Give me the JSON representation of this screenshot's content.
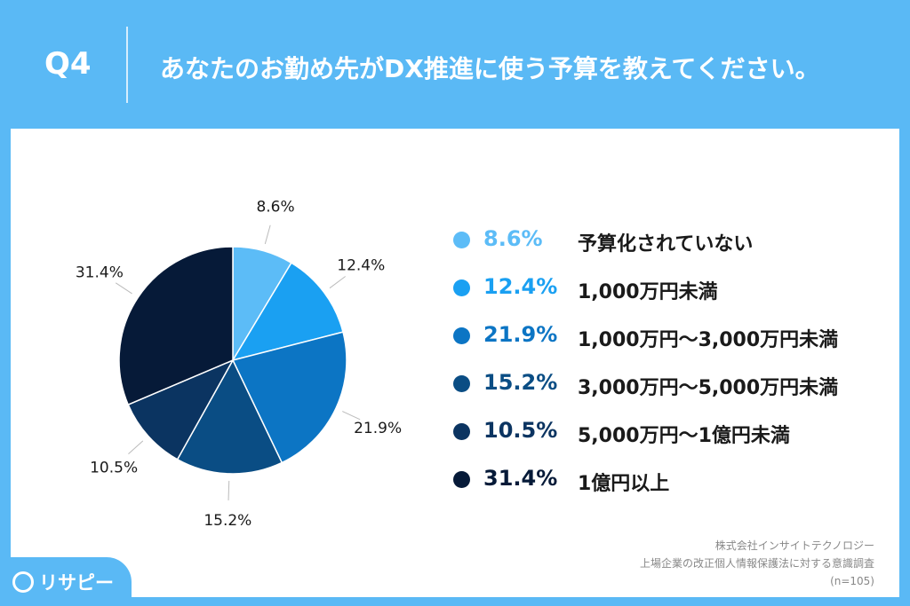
{
  "header": {
    "qnum": "Q4",
    "question": "あなたのお勤め先がDX推進に使う予算を教えてください。"
  },
  "chart_data": {
    "type": "pie",
    "title": "",
    "categories": [
      "予算化されていない",
      "1,000万円未満",
      "1,000万円〜3,000万円未満",
      "3,000万円〜5,000万円未満",
      "5,000万円〜1億円未満",
      "1億円以上"
    ],
    "values": [
      8.6,
      12.4,
      21.9,
      15.2,
      10.5,
      31.4
    ],
    "labels": [
      "8.6%",
      "12.4%",
      "21.9%",
      "15.2%",
      "10.5%",
      "31.4%"
    ],
    "colors": [
      "#5cbcf7",
      "#1aa0f2",
      "#0c75c4",
      "#0a4d84",
      "#0b3461",
      "#061a38"
    ],
    "legend_position": "right"
  },
  "legend": [
    {
      "pct": "8.6%",
      "label": "予算化されていない",
      "color": "#5cbcf7"
    },
    {
      "pct": "12.4%",
      "label": "1,000万円未満",
      "color": "#1aa0f2"
    },
    {
      "pct": "21.9%",
      "label": "1,000万円〜3,000万円未満",
      "color": "#0c75c4"
    },
    {
      "pct": "15.2%",
      "label": "3,000万円〜5,000万円未満",
      "color": "#0a4d84"
    },
    {
      "pct": "10.5%",
      "label": "5,000万円〜1億円未満",
      "color": "#0b3461"
    },
    {
      "pct": "31.4%",
      "label": "1億円以上",
      "color": "#061a38"
    }
  ],
  "source": {
    "company": "株式会社インサイトテクノロジー",
    "survey": "上場企業の改正個人情報保護法に対する意識調査",
    "n": "(n=105)"
  },
  "logo": {
    "text": "リサピー"
  }
}
